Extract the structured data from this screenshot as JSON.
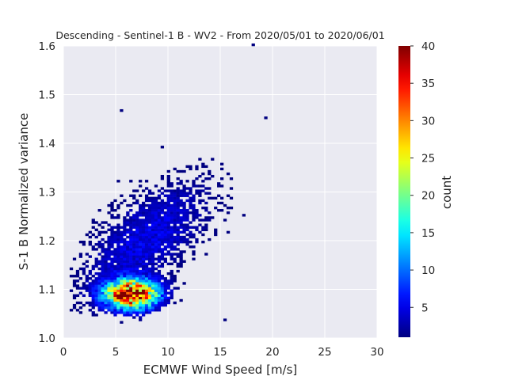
{
  "chart_data": {
    "type": "heatmap",
    "title": "Descending - Sentinel-1 B - WV2 - From 2020/05/01 to 2020/06/01",
    "xlabel": "ECMWF Wind Speed [m/s]",
    "ylabel": "S-1 B Normalized variance",
    "xlim": [
      0,
      30
    ],
    "ylim": [
      1.0,
      1.6
    ],
    "xticks": [
      "0",
      "5",
      "10",
      "15",
      "20",
      "25",
      "30"
    ],
    "yticks": [
      "1.0",
      "1.1",
      "1.2",
      "1.3",
      "1.4",
      "1.5",
      "1.6"
    ],
    "grid": true,
    "colormap": "jet",
    "colorbar": {
      "label": "count",
      "range": [
        1,
        40
      ],
      "ticks": [
        "5",
        "10",
        "15",
        "20",
        "25",
        "30",
        "35",
        "40"
      ]
    },
    "density_peak": {
      "x": 6.5,
      "y": 1.09,
      "count": 40
    },
    "colors": {
      "panel": "#eaeaf2",
      "grid": "#ffffff",
      "text": "#262626"
    }
  }
}
